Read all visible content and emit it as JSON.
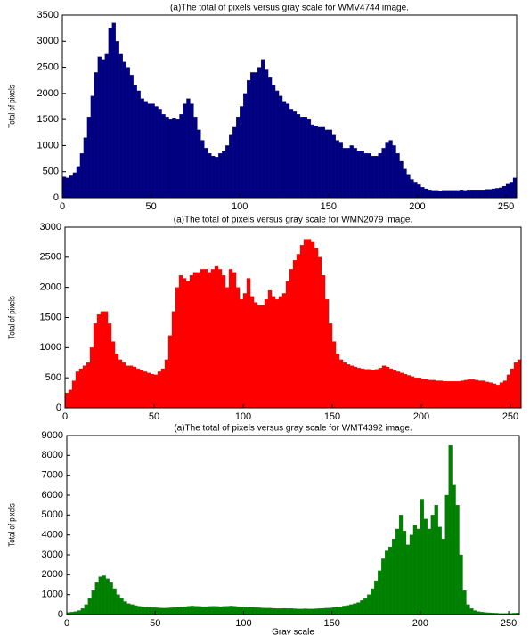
{
  "chart_data": [
    {
      "type": "histogram",
      "title": "(a)The total of pixels versus gray scale for WMV4744 image.",
      "y_label": "Total of pixels",
      "color": "#000080",
      "bins": [
        0,
        2,
        4,
        6,
        8,
        10,
        12,
        14,
        16,
        18,
        20,
        22,
        24,
        26,
        28,
        30,
        32,
        34,
        36,
        38,
        40,
        42,
        44,
        46,
        48,
        50,
        52,
        54,
        56,
        58,
        60,
        62,
        64,
        66,
        68,
        70,
        72,
        74,
        76,
        78,
        80,
        82,
        84,
        86,
        88,
        90,
        92,
        94,
        96,
        98,
        100,
        102,
        104,
        106,
        108,
        110,
        112,
        114,
        116,
        118,
        120,
        122,
        124,
        126,
        128,
        130,
        132,
        134,
        136,
        138,
        140,
        142,
        144,
        146,
        148,
        150,
        152,
        154,
        156,
        158,
        160,
        162,
        164,
        166,
        168,
        170,
        172,
        174,
        176,
        178,
        180,
        182,
        184,
        186,
        188,
        190,
        192,
        194,
        196,
        198,
        200,
        202,
        204,
        206,
        208,
        210,
        212,
        214,
        216,
        218,
        220,
        222,
        224,
        226,
        228,
        230,
        232,
        234,
        236,
        238,
        240,
        242,
        244,
        246,
        248,
        250,
        252,
        254,
        256
      ],
      "values": [
        400,
        380,
        420,
        480,
        600,
        850,
        1150,
        1550,
        1950,
        2400,
        2700,
        2650,
        2750,
        3250,
        3350,
        3000,
        2750,
        2600,
        2500,
        2350,
        2150,
        2050,
        1900,
        1850,
        1800,
        1800,
        1750,
        1700,
        1600,
        1550,
        1500,
        1520,
        1500,
        1600,
        1800,
        1900,
        1800,
        1550,
        1300,
        1100,
        950,
        850,
        800,
        780,
        850,
        900,
        1000,
        1200,
        1350,
        1550,
        1750,
        2000,
        2250,
        2400,
        2400,
        2500,
        2650,
        2450,
        2300,
        2150,
        2050,
        1950,
        1850,
        1800,
        1700,
        1650,
        1600,
        1550,
        1550,
        1500,
        1400,
        1380,
        1350,
        1350,
        1300,
        1300,
        1200,
        1100,
        1050,
        950,
        950,
        1000,
        950,
        900,
        900,
        850,
        850,
        800,
        800,
        850,
        950,
        1050,
        1100,
        1000,
        850,
        700,
        550,
        450,
        350,
        300,
        250,
        200,
        170,
        150,
        140,
        140,
        130,
        140,
        140,
        140,
        140,
        140,
        150,
        140,
        150,
        150,
        150,
        150,
        150,
        160,
        160,
        170,
        180,
        190,
        220,
        260,
        300,
        380
      ],
      "xlim": [
        0,
        256
      ],
      "xticks": [
        0,
        50,
        100,
        150,
        200,
        250
      ],
      "ylim": [
        0,
        3500
      ],
      "yticks": [
        0,
        500,
        1000,
        1500,
        2000,
        2500,
        3000,
        3500
      ]
    },
    {
      "type": "histogram",
      "title": "(a)The total of pixels versus gray scale for WMN2079 image.",
      "y_label": "Total of pixels",
      "color": "#ff0000",
      "bins": [
        0,
        2,
        4,
        6,
        8,
        10,
        12,
        14,
        16,
        18,
        20,
        22,
        24,
        26,
        28,
        30,
        32,
        34,
        36,
        38,
        40,
        42,
        44,
        46,
        48,
        50,
        52,
        54,
        56,
        58,
        60,
        62,
        64,
        66,
        68,
        70,
        72,
        74,
        76,
        78,
        80,
        82,
        84,
        86,
        88,
        90,
        92,
        94,
        96,
        98,
        100,
        102,
        104,
        106,
        108,
        110,
        112,
        114,
        116,
        118,
        120,
        122,
        124,
        126,
        128,
        130,
        132,
        134,
        136,
        138,
        140,
        142,
        144,
        146,
        148,
        150,
        152,
        154,
        156,
        158,
        160,
        162,
        164,
        166,
        168,
        170,
        172,
        174,
        176,
        178,
        180,
        182,
        184,
        186,
        188,
        190,
        192,
        194,
        196,
        198,
        200,
        202,
        204,
        206,
        208,
        210,
        212,
        214,
        216,
        218,
        220,
        222,
        224,
        226,
        228,
        230,
        232,
        234,
        236,
        238,
        240,
        242,
        244,
        246,
        248,
        250,
        252,
        254,
        256
      ],
      "values": [
        250,
        300,
        450,
        600,
        650,
        700,
        750,
        1000,
        1400,
        1550,
        1600,
        1600,
        1400,
        1100,
        900,
        800,
        750,
        700,
        700,
        680,
        650,
        620,
        600,
        580,
        560,
        550,
        600,
        650,
        800,
        1200,
        1600,
        2000,
        2200,
        2150,
        2100,
        2200,
        2250,
        2250,
        2300,
        2300,
        2250,
        2300,
        2350,
        2300,
        2200,
        2000,
        2300,
        2250,
        2000,
        1800,
        1900,
        2150,
        1850,
        1750,
        1700,
        1700,
        1800,
        1950,
        1850,
        1800,
        1850,
        1900,
        2100,
        2300,
        2450,
        2550,
        2700,
        2800,
        2800,
        2750,
        2650,
        2500,
        2200,
        1800,
        1400,
        1100,
        900,
        800,
        750,
        720,
        700,
        680,
        660,
        650,
        640,
        640,
        630,
        640,
        660,
        700,
        680,
        650,
        620,
        600,
        580,
        560,
        540,
        520,
        500,
        500,
        480,
        480,
        460,
        460,
        450,
        450,
        440,
        440,
        440,
        440,
        440,
        450,
        460,
        470,
        470,
        460,
        450,
        450,
        430,
        420,
        400,
        380,
        420,
        450,
        550,
        650,
        750,
        800
      ],
      "xlim": [
        0,
        256
      ],
      "xticks": [
        0,
        50,
        100,
        150,
        200,
        250
      ],
      "ylim": [
        0,
        3000
      ],
      "yticks": [
        0,
        500,
        1000,
        1500,
        2000,
        2500,
        3000
      ]
    },
    {
      "type": "histogram",
      "title": "(a)The total of pixels versus gray scale for WMT4392 image.",
      "y_label": "Total of pixels",
      "x_label": "Gray scale",
      "color": "#008000",
      "bins": [
        0,
        2,
        4,
        6,
        8,
        10,
        12,
        14,
        16,
        18,
        20,
        22,
        24,
        26,
        28,
        30,
        32,
        34,
        36,
        38,
        40,
        42,
        44,
        46,
        48,
        50,
        52,
        54,
        56,
        58,
        60,
        62,
        64,
        66,
        68,
        70,
        72,
        74,
        76,
        78,
        80,
        82,
        84,
        86,
        88,
        90,
        92,
        94,
        96,
        98,
        100,
        102,
        104,
        106,
        108,
        110,
        112,
        114,
        116,
        118,
        120,
        122,
        124,
        126,
        128,
        130,
        132,
        134,
        136,
        138,
        140,
        142,
        144,
        146,
        148,
        150,
        152,
        154,
        156,
        158,
        160,
        162,
        164,
        166,
        168,
        170,
        172,
        174,
        176,
        178,
        180,
        182,
        184,
        186,
        188,
        190,
        192,
        194,
        196,
        198,
        200,
        202,
        204,
        206,
        208,
        210,
        212,
        214,
        216,
        218,
        220,
        222,
        224,
        226,
        228,
        230,
        232,
        234,
        236,
        238,
        240,
        242,
        244,
        246,
        248,
        250,
        252,
        254,
        256
      ],
      "values": [
        100,
        120,
        150,
        200,
        300,
        500,
        800,
        1200,
        1600,
        1900,
        1950,
        1800,
        1600,
        1300,
        1000,
        800,
        650,
        550,
        500,
        450,
        420,
        400,
        380,
        360,
        350,
        340,
        330,
        320,
        330,
        340,
        350,
        360,
        380,
        400,
        420,
        430,
        420,
        410,
        400,
        400,
        410,
        420,
        410,
        400,
        410,
        420,
        430,
        420,
        400,
        390,
        380,
        370,
        360,
        350,
        340,
        330,
        320,
        320,
        310,
        300,
        300,
        310,
        300,
        300,
        290,
        280,
        280,
        290,
        280,
        280,
        290,
        300,
        310,
        320,
        330,
        350,
        380,
        400,
        430,
        460,
        500,
        550,
        600,
        700,
        800,
        1000,
        1300,
        1700,
        2200,
        2800,
        3200,
        3400,
        3800,
        4300,
        5000,
        4200,
        3500,
        4000,
        4500,
        4300,
        5800,
        4800,
        4300,
        5000,
        5500,
        4400,
        3800,
        6000,
        8500,
        6500,
        5500,
        3000,
        1200,
        500,
        300,
        200,
        150,
        120,
        100,
        90,
        80,
        70,
        60,
        60,
        60,
        60,
        70,
        80
      ],
      "xlim": [
        0,
        256
      ],
      "xticks": [
        0,
        50,
        100,
        150,
        200,
        250
      ],
      "ylim": [
        0,
        9000
      ],
      "yticks": [
        0,
        1000,
        2000,
        3000,
        4000,
        5000,
        6000,
        7000,
        8000,
        9000
      ]
    }
  ]
}
